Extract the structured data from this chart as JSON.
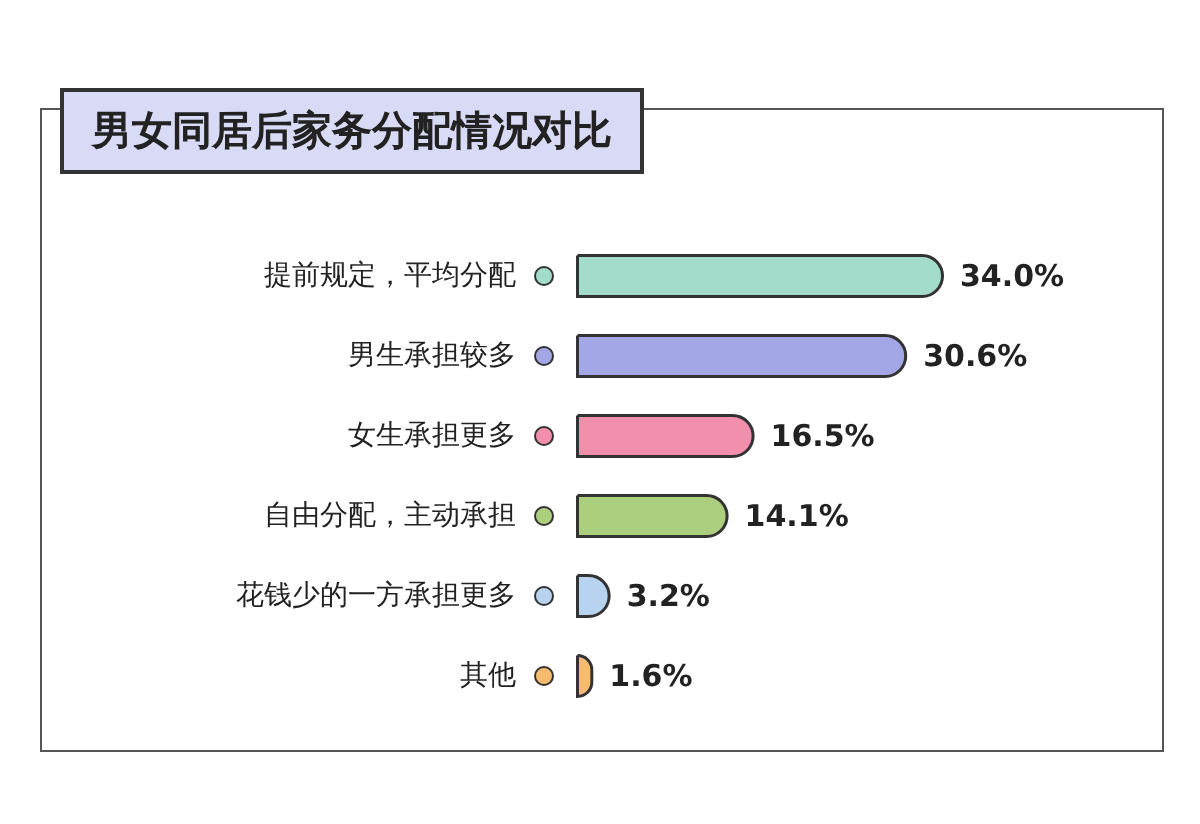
{
  "chart_data": {
    "type": "bar",
    "orientation": "horizontal",
    "title": "男女同居后家务分配情况对比",
    "categories": [
      "提前规定，平均分配",
      "男生承担较多",
      "女生承担更多",
      "自由分配，主动承担",
      "花钱少的一方承担更多",
      "其他"
    ],
    "values": [
      34.0,
      30.6,
      16.5,
      14.1,
      3.2,
      1.6
    ],
    "colors": [
      "#a3dccb",
      "#a4a7e6",
      "#f28fac",
      "#accf7e",
      "#b7d3f0",
      "#f6bb6c"
    ],
    "value_labels": [
      "34.0%",
      "30.6%",
      "16.5%",
      "14.1%",
      "3.2%",
      "1.6%"
    ]
  }
}
